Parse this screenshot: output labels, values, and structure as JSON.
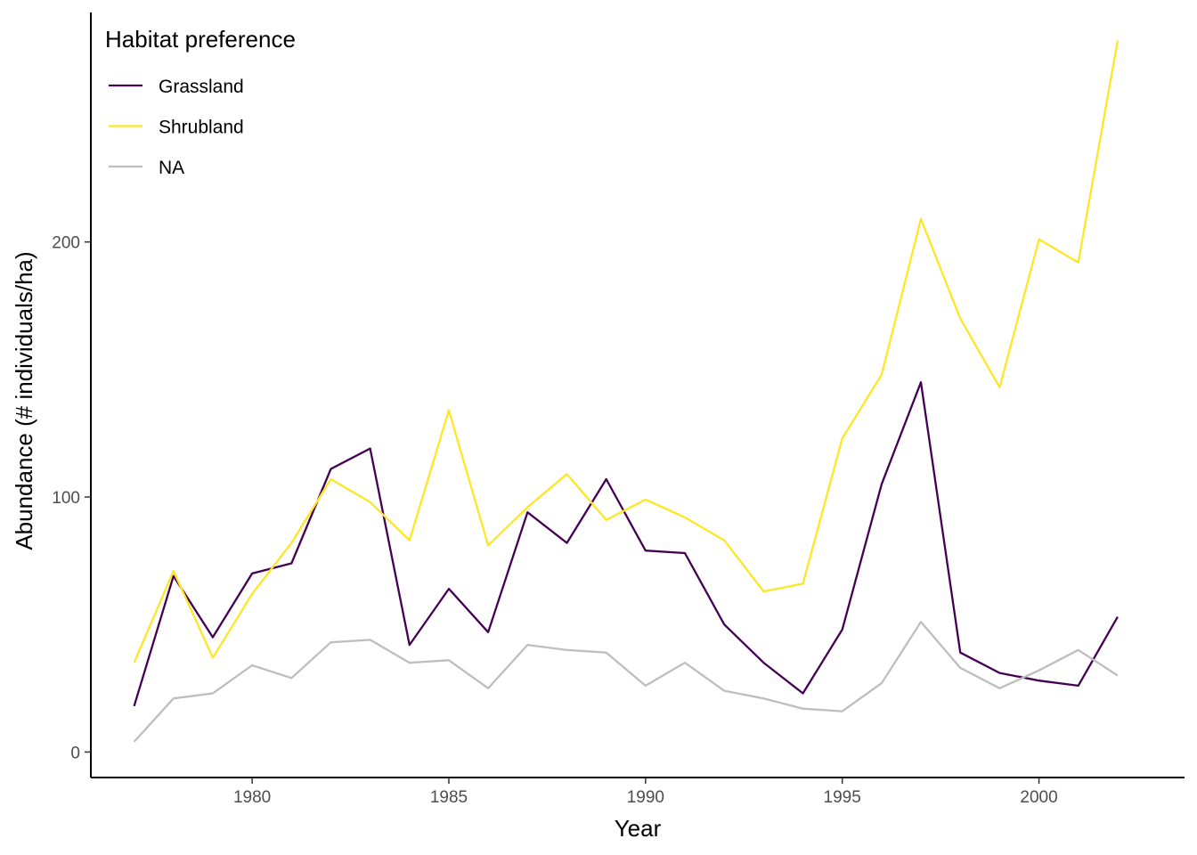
{
  "chart_data": {
    "type": "line",
    "title": "",
    "xlabel": "Year",
    "ylabel": "Abundance (# individuals/ha)",
    "xlim": [
      1975.9,
      2003.7
    ],
    "ylim": [
      -10,
      290
    ],
    "x_ticks": [
      1980,
      1985,
      1990,
      1995,
      2000
    ],
    "y_ticks": [
      0,
      100,
      200
    ],
    "grid": false,
    "legend": {
      "title": "Habitat preference",
      "placement": "top-left"
    },
    "x": [
      1977,
      1978,
      1979,
      1980,
      1981,
      1982,
      1983,
      1984,
      1985,
      1986,
      1987,
      1988,
      1989,
      1990,
      1991,
      1992,
      1993,
      1994,
      1995,
      1996,
      1997,
      1998,
      1999,
      2000,
      2001,
      2002
    ],
    "series": [
      {
        "name": "Grassland",
        "color": "#440154",
        "values": [
          18,
          69,
          45,
          70,
          74,
          111,
          119,
          42,
          64,
          47,
          94,
          82,
          107,
          79,
          78,
          50,
          35,
          23,
          48,
          105,
          145,
          39,
          31,
          28,
          26,
          53
        ]
      },
      {
        "name": "Shrubland",
        "color": "#FDE725",
        "values": [
          35,
          71,
          37,
          62,
          82,
          107,
          98,
          83,
          134,
          81,
          96,
          109,
          91,
          99,
          92,
          83,
          63,
          66,
          123,
          148,
          209,
          170,
          143,
          201,
          192,
          279
        ]
      },
      {
        "name": "NA",
        "color": "#BEBEBE",
        "values": [
          4,
          21,
          23,
          34,
          29,
          43,
          44,
          35,
          36,
          25,
          42,
          40,
          39,
          26,
          35,
          24,
          21,
          17,
          16,
          27,
          51,
          33,
          25,
          32,
          40,
          30
        ]
      }
    ]
  }
}
